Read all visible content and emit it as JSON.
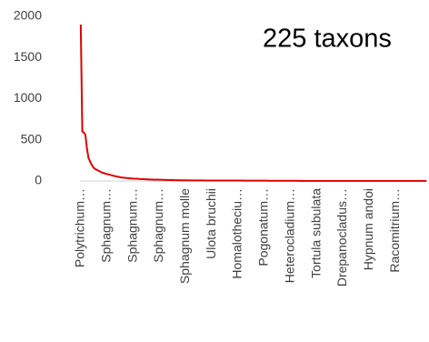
{
  "chart_data": {
    "type": "line",
    "title": "225 taxons",
    "color": "#e00000",
    "categories": [
      "Polytrichum…",
      null,
      null,
      null,
      null,
      null,
      null,
      null,
      null,
      null,
      null,
      null,
      null,
      null,
      null,
      null,
      null,
      "Sphagnum…",
      null,
      null,
      null,
      null,
      null,
      null,
      null,
      null,
      null,
      null,
      null,
      null,
      null,
      null,
      null,
      null,
      "Sphagnum…",
      null,
      null,
      null,
      null,
      null,
      null,
      null,
      null,
      null,
      null,
      null,
      null,
      null,
      null,
      null,
      null,
      "Sphagnum…",
      null,
      null,
      null,
      null,
      null,
      null,
      null,
      null,
      null,
      null,
      null,
      null,
      null,
      null,
      null,
      null,
      "Sphagnum molle",
      null,
      null,
      null,
      null,
      null,
      null,
      null,
      null,
      null,
      null,
      null,
      null,
      null,
      null,
      null,
      null,
      "Ulota bruchii",
      null,
      null,
      null,
      null,
      null,
      null,
      null,
      null,
      null,
      null,
      null,
      null,
      null,
      null,
      null,
      null,
      "Homalotheciu…",
      null,
      null,
      null,
      null,
      null,
      null,
      null,
      null,
      null,
      null,
      null,
      null,
      null,
      null,
      null,
      null,
      "Pogonatum…",
      null,
      null,
      null,
      null,
      null,
      null,
      null,
      null,
      null,
      null,
      null,
      null,
      null,
      null,
      null,
      null,
      "Heterocladium…",
      null,
      null,
      null,
      null,
      null,
      null,
      null,
      null,
      null,
      null,
      null,
      null,
      null,
      null,
      null,
      null,
      "Tortula subulata",
      null,
      null,
      null,
      null,
      null,
      null,
      null,
      null,
      null,
      null,
      null,
      null,
      null,
      null,
      null,
      null,
      "Drepanocladus…",
      null,
      null,
      null,
      null,
      null,
      null,
      null,
      null,
      null,
      null,
      null,
      null,
      null,
      null,
      null,
      null,
      "Hypnum andoi",
      null,
      null,
      null,
      null,
      null,
      null,
      null,
      null,
      null,
      null,
      null,
      null,
      null,
      null,
      null,
      null,
      "Racomitrium…",
      null,
      null,
      null,
      null,
      null,
      null,
      null,
      null,
      null,
      null,
      null,
      null,
      null,
      null,
      null,
      null,
      null,
      null,
      null,
      null
    ],
    "values": [
      1900,
      600,
      590,
      560,
      400,
      280,
      240,
      200,
      170,
      150,
      140,
      130,
      120,
      110,
      100,
      95,
      90,
      85,
      80,
      75,
      70,
      65,
      60,
      56,
      52,
      48,
      45,
      42,
      40,
      38,
      36,
      34,
      32,
      30,
      29,
      28,
      27,
      26,
      25,
      24,
      23,
      22,
      21,
      20,
      19,
      18,
      18,
      17,
      17,
      16,
      16,
      15,
      15,
      14,
      14,
      13,
      13,
      12,
      12,
      11,
      11,
      10,
      10,
      10,
      9,
      9,
      9,
      8,
      8,
      8,
      8,
      7,
      7,
      7,
      7,
      7,
      7,
      7,
      7,
      7,
      7,
      6,
      6,
      6,
      6,
      6,
      6,
      6,
      6,
      6,
      6,
      5,
      5,
      5,
      5,
      5,
      5,
      5,
      5,
      5,
      5,
      5,
      5,
      5,
      5,
      5,
      4,
      4,
      4,
      4,
      4,
      4,
      4,
      4,
      4,
      4,
      4,
      4,
      4,
      4,
      4,
      3,
      3,
      3,
      3,
      3,
      3,
      3,
      3,
      3,
      3,
      3,
      3,
      3,
      3,
      3,
      3,
      3,
      3,
      3,
      3,
      2,
      2,
      2,
      2,
      2,
      2,
      2,
      2,
      2,
      2,
      2,
      2,
      2,
      2,
      2,
      2,
      2,
      2,
      2,
      2,
      1,
      1,
      1,
      1,
      1,
      1,
      1,
      1,
      1,
      1,
      1,
      1,
      1,
      1,
      1,
      1,
      1,
      1,
      1,
      1,
      1,
      1,
      1,
      1,
      1,
      1,
      1,
      1,
      1,
      1,
      1,
      1,
      1,
      1,
      1,
      1,
      1,
      1,
      1,
      1,
      1,
      1,
      1,
      1,
      1,
      1,
      1,
      1,
      1,
      1,
      1,
      1,
      1,
      1,
      1,
      1,
      1,
      1,
      1,
      1,
      1,
      1,
      1,
      1
    ],
    "ylim": [
      0,
      2000
    ],
    "yticks": [
      0,
      500,
      1000,
      1500,
      2000
    ]
  }
}
